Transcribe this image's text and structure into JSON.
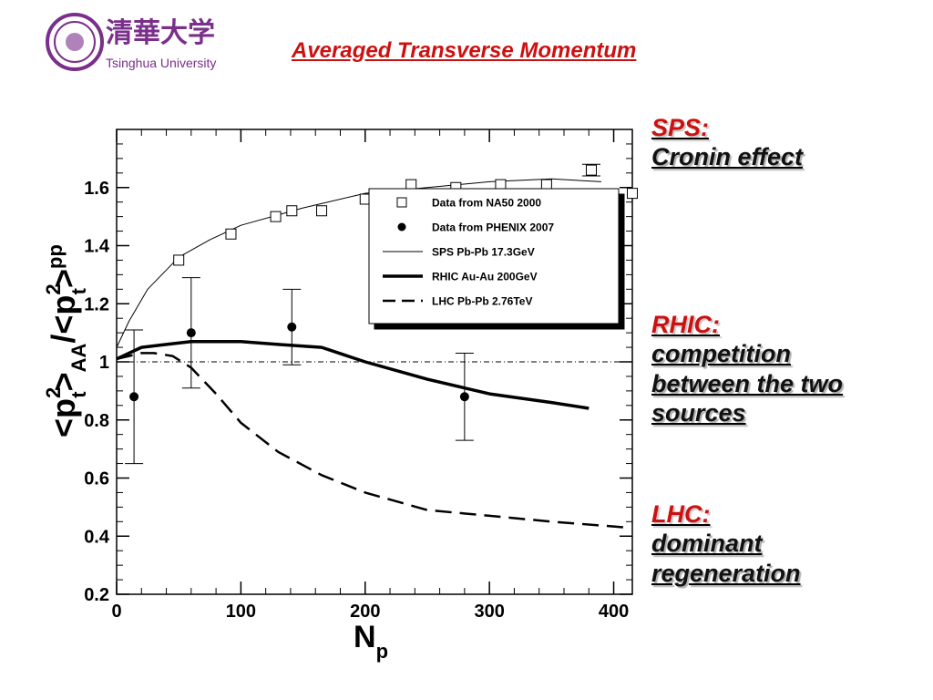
{
  "header": {
    "title": "Averaged Transverse Momentum",
    "logo_text": "Tsinghua University",
    "logo_chinese": "清華大学"
  },
  "notes": [
    {
      "heading": "SPS:",
      "lines": [
        "Cronin effect"
      ]
    },
    {
      "heading": "RHIC:",
      "lines": [
        "competition",
        "between the two",
        "sources"
      ]
    },
    {
      "heading": "LHC:",
      "lines": [
        "dominant",
        "regeneration"
      ]
    }
  ],
  "chart_data": {
    "type": "scatter",
    "title": "",
    "xlabel_main": "N",
    "xlabel_sub": "p",
    "ylabel": "<p_t^2>_AA/<p_t^2>_pp",
    "xlim": [
      0,
      415
    ],
    "ylim": [
      0.2,
      1.8
    ],
    "xticks": [
      0,
      100,
      200,
      300,
      400
    ],
    "yticks": [
      0.2,
      0.4,
      0.6,
      0.8,
      1.0,
      1.2,
      1.4,
      1.6
    ],
    "reference_line_y": 1.0,
    "grid": false,
    "legend_position": "upper-right inside",
    "series": [
      {
        "name": "Data from NA50 2000",
        "kind": "markers",
        "marker": "open-square",
        "x": [
          50,
          92,
          128,
          141,
          165,
          200,
          237,
          273,
          309,
          346,
          382,
          415
        ],
        "y": [
          1.35,
          1.44,
          1.5,
          1.52,
          1.52,
          1.56,
          1.61,
          1.6,
          1.61,
          1.61,
          1.66,
          1.58
        ],
        "yerr": [
          0,
          0,
          0,
          0,
          0,
          0,
          0,
          0,
          0,
          0,
          0.02,
          0
        ]
      },
      {
        "name": "Data from PHENIX 2007",
        "kind": "markers",
        "marker": "filled-circle",
        "x": [
          14,
          60,
          141,
          280
        ],
        "y": [
          0.88,
          1.1,
          1.12,
          0.88
        ],
        "yerr": [
          0.23,
          0.19,
          0.13,
          0.15
        ]
      },
      {
        "name": "SPS Pb-Pb 17.3GeV",
        "kind": "line",
        "style": "thin",
        "x": [
          0,
          10,
          25,
          50,
          75,
          100,
          150,
          200,
          250,
          300,
          350,
          390
        ],
        "y": [
          1.05,
          1.14,
          1.25,
          1.36,
          1.42,
          1.47,
          1.53,
          1.58,
          1.6,
          1.62,
          1.63,
          1.62
        ]
      },
      {
        "name": "RHIC Au-Au 200GeV",
        "kind": "line",
        "style": "thick",
        "x": [
          0,
          10,
          20,
          40,
          60,
          80,
          100,
          130,
          165,
          200,
          250,
          300,
          350,
          380
        ],
        "y": [
          1.01,
          1.03,
          1.05,
          1.06,
          1.07,
          1.07,
          1.07,
          1.06,
          1.05,
          1.0,
          0.94,
          0.89,
          0.86,
          0.84
        ]
      },
      {
        "name": "LHC Pb-Pb 2.76TeV",
        "kind": "line",
        "style": "dashed",
        "x": [
          0,
          10,
          20,
          30,
          45,
          60,
          80,
          100,
          130,
          165,
          200,
          250,
          300,
          350,
          410
        ],
        "y": [
          1.01,
          1.02,
          1.03,
          1.03,
          1.02,
          0.98,
          0.89,
          0.79,
          0.69,
          0.61,
          0.55,
          0.49,
          0.47,
          0.45,
          0.43
        ]
      }
    ]
  }
}
